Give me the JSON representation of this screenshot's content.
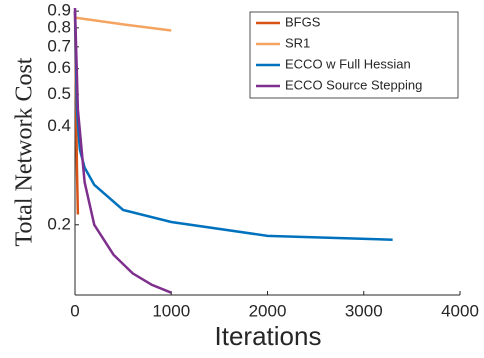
{
  "chart_data": {
    "type": "line",
    "xlabel": "Iterations",
    "ylabel": "Total Network Cost",
    "xlim": [
      0,
      4000
    ],
    "xticks": [
      0,
      1000,
      2000,
      3000,
      4000
    ],
    "ylim": [
      0.122,
      0.92
    ],
    "yticks": [
      0.2,
      0.4,
      0.5,
      0.6,
      0.7,
      0.8,
      0.9
    ],
    "log_y": true,
    "grid": false,
    "legend": "upper right",
    "series": [
      {
        "name": "BFGS",
        "color": "#d95319",
        "x": [
          0,
          10,
          20,
          30
        ],
        "values": [
          0.9,
          0.5,
          0.3,
          0.215
        ]
      },
      {
        "name": "SR1",
        "color": "#f4a460",
        "x": [
          0,
          500,
          1000
        ],
        "values": [
          0.86,
          0.82,
          0.785
        ]
      },
      {
        "name": "ECCO w Full Hessian",
        "color": "#0072bd",
        "x": [
          0,
          20,
          50,
          100,
          200,
          500,
          1000,
          2000,
          3300
        ],
        "values": [
          0.9,
          0.45,
          0.34,
          0.299,
          0.265,
          0.222,
          0.204,
          0.185,
          0.18
        ]
      },
      {
        "name": "ECCO Source Stepping",
        "color": "#7e2f8e",
        "x": [
          0,
          30,
          100,
          200,
          400,
          600,
          800,
          1000
        ],
        "values": [
          0.92,
          0.45,
          0.27,
          0.2,
          0.162,
          0.142,
          0.131,
          0.124
        ]
      }
    ]
  }
}
